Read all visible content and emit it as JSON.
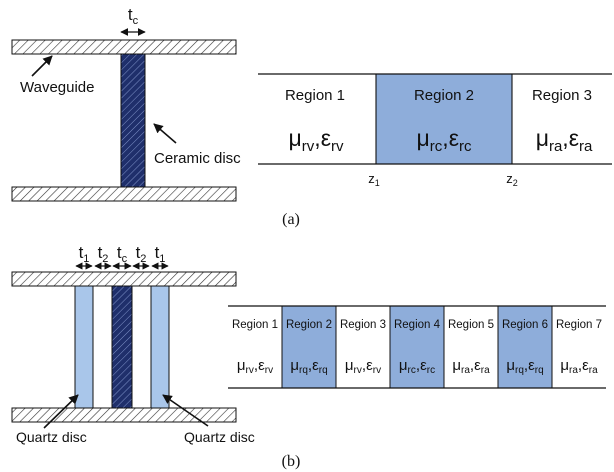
{
  "panel_a": {
    "caption": "(a)",
    "dimension_label": {
      "base": "t",
      "sub": "c"
    },
    "callout_waveguide": "Waveguide",
    "callout_ceramic": "Ceramic disc",
    "boundary_labels": [
      {
        "base": "z",
        "sub": "1"
      },
      {
        "base": "z",
        "sub": "2"
      }
    ],
    "regions": [
      {
        "name": "Region 1",
        "mu_sub": "rv",
        "eps_sub": "rv",
        "shaded": false
      },
      {
        "name": "Region 2",
        "mu_sub": "rc",
        "eps_sub": "rc",
        "shaded": true
      },
      {
        "name": "Region 3",
        "mu_sub": "ra",
        "eps_sub": "ra",
        "shaded": false
      }
    ]
  },
  "panel_b": {
    "caption": "(b)",
    "dimension_labels": [
      {
        "base": "t",
        "sub": "1"
      },
      {
        "base": "t",
        "sub": "2"
      },
      {
        "base": "t",
        "sub": "c"
      },
      {
        "base": "t",
        "sub": "2"
      },
      {
        "base": "t",
        "sub": "1"
      }
    ],
    "callout_quartz_left": "Quartz disc",
    "callout_quartz_right": "Quartz disc",
    "regions": [
      {
        "name": "Region 1",
        "mu_sub": "rv",
        "eps_sub": "rv",
        "shaded": false
      },
      {
        "name": "Region 2",
        "mu_sub": "rq",
        "eps_sub": "rq",
        "shaded": true
      },
      {
        "name": "Region 3",
        "mu_sub": "rv",
        "eps_sub": "rv",
        "shaded": false
      },
      {
        "name": "Region 4",
        "mu_sub": "rc",
        "eps_sub": "rc",
        "shaded": true
      },
      {
        "name": "Region 5",
        "mu_sub": "ra",
        "eps_sub": "ra",
        "shaded": false
      },
      {
        "name": "Region 6",
        "mu_sub": "rq",
        "eps_sub": "rq",
        "shaded": true
      },
      {
        "name": "Region 7",
        "mu_sub": "ra",
        "eps_sub": "ra",
        "shaded": false
      }
    ]
  },
  "symbols": {
    "mu": "μ",
    "eps": "ε",
    "sep": ","
  },
  "colors": {
    "region_fill": "#8eadda",
    "quartz_fill": "#a9c6ea",
    "ceramic_fill": "#1f2f6b",
    "line": "#111111"
  }
}
